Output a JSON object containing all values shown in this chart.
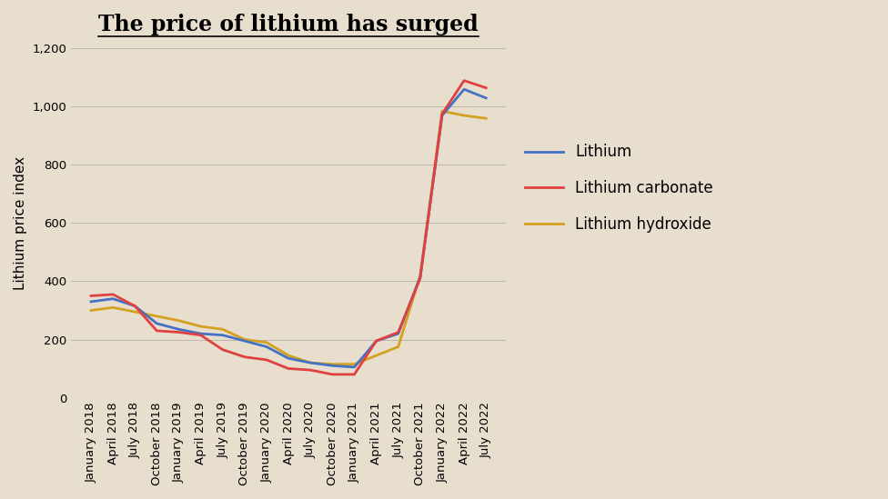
{
  "title": "The price of lithium has surged",
  "ylabel": "Lithium price index",
  "background_color": "#e8dece",
  "ylim": [
    0,
    1200
  ],
  "yticks": [
    0,
    200,
    400,
    600,
    800,
    1000,
    1200
  ],
  "title_fontsize": 17,
  "label_fontsize": 11,
  "tick_fontsize": 9.5,
  "legend_fontsize": 12,
  "line_width": 2.0,
  "x_labels": [
    "January 2018",
    "April 2018",
    "July 2018",
    "October 2018",
    "January 2019",
    "April 2019",
    "July 2019",
    "October 2019",
    "January 2020",
    "April 2020",
    "July 2020",
    "October 2020",
    "January 2021",
    "April 2021",
    "July 2021",
    "October 2021",
    "January 2022",
    "April 2022",
    "July 2022"
  ],
  "lithium": [
    330,
    340,
    315,
    255,
    235,
    220,
    215,
    195,
    175,
    135,
    120,
    110,
    105,
    195,
    220,
    415,
    970,
    1060,
    1030
  ],
  "lithium_carbonate": [
    350,
    355,
    315,
    230,
    225,
    215,
    165,
    140,
    130,
    100,
    95,
    80,
    80,
    195,
    225,
    410,
    975,
    1090,
    1065
  ],
  "lithium_hydroxide": [
    300,
    310,
    295,
    280,
    265,
    245,
    235,
    200,
    190,
    145,
    120,
    115,
    115,
    145,
    175,
    420,
    985,
    970,
    960
  ],
  "color_lithium": "#4472c4",
  "color_lithium_carbonate": "#e04040",
  "color_lithium_hydroxide": "#d4a020",
  "legend_labels": [
    "Lithium",
    "Lithium carbonate",
    "Lithium hydroxide"
  ]
}
